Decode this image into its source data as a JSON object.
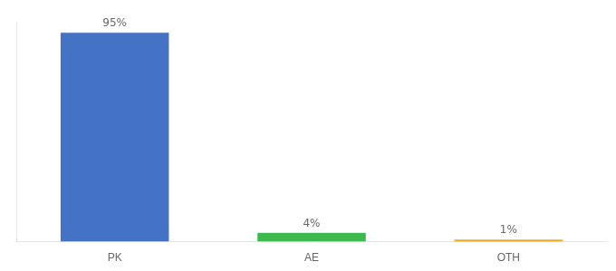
{
  "chart_data": {
    "type": "bar",
    "categories": [
      "PK",
      "AE",
      "OTH"
    ],
    "values": [
      95,
      4,
      1
    ],
    "value_labels": [
      "95%",
      "4%",
      "1%"
    ],
    "data_labels": true,
    "colors": [
      "#4472c4",
      "#3dba4e",
      "#f5a623"
    ],
    "ylim": [
      0,
      100
    ],
    "tick_labels": "x",
    "grid": false
  }
}
